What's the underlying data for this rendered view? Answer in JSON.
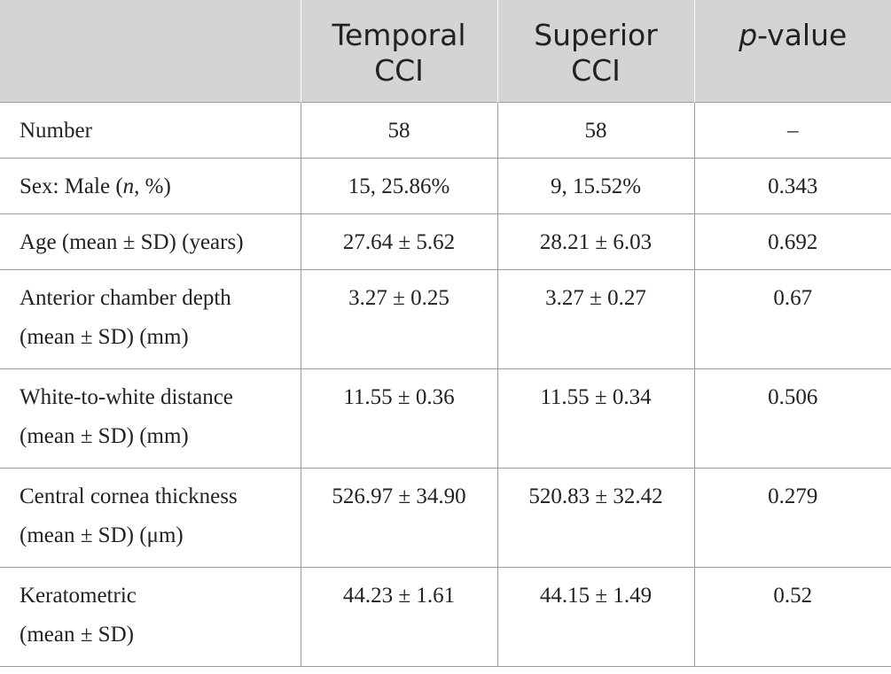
{
  "table": {
    "headers": {
      "col0": "",
      "col1": "Temporal CCI",
      "col2": "Superior CCI",
      "col3_italic": "p",
      "col3_rest": "-value"
    },
    "rows": [
      {
        "label": "Number",
        "temporal": "58",
        "superior": "58",
        "p": "–"
      },
      {
        "label_pre": "Sex: Male (",
        "label_italic": "n",
        "label_post": ", %)",
        "temporal": "15, 25.86%",
        "superior": "9, 15.52%",
        "p": "0.343"
      },
      {
        "label": "Age (mean ± SD) (years)",
        "temporal": "27.64 ± 5.62",
        "superior": "28.21 ± 6.03",
        "p": "0.692"
      },
      {
        "label_line1": "Anterior chamber depth",
        "label_line2": "(mean ± SD) (mm)",
        "temporal": "3.27 ± 0.25",
        "superior": "3.27 ± 0.27",
        "p": "0.67"
      },
      {
        "label_line1": "White-to-white distance",
        "label_line2": "(mean ± SD) (mm)",
        "temporal": "11.55 ± 0.36",
        "superior": "11.55 ± 0.34",
        "p": "0.506"
      },
      {
        "label_line1": "Central cornea thickness",
        "label_line2": "(mean ± SD) (μm)",
        "temporal": "526.97 ± 34.90",
        "superior": "520.83 ± 32.42",
        "p": "0.279"
      },
      {
        "label_line1": "Keratometric",
        "label_line2": "(mean ± SD)",
        "temporal": "44.23 ± 1.61",
        "superior": "44.15 ± 1.49",
        "p": "0.52"
      }
    ]
  }
}
